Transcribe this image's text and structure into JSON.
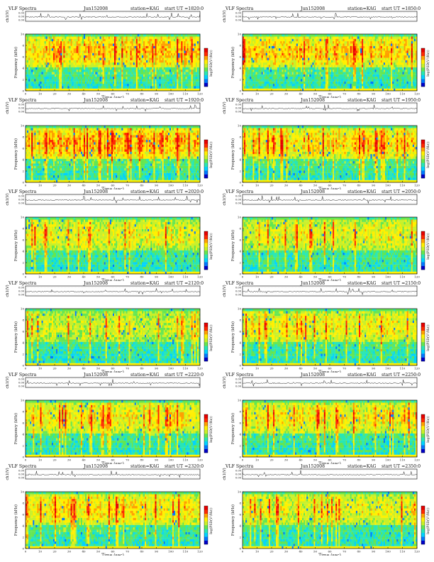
{
  "page_title": "VLF Spectra",
  "labels": {
    "channel_axis": "ch1(V)",
    "freq_axis": "Frequency (kHz)",
    "time_axis": "Time (sec)",
    "colorbar": "log(PSD(V²/Hz))",
    "ch_ticks": [
      "0.00",
      "0.00",
      "0.00"
    ]
  },
  "colors": {
    "spectrogram_scale": [
      "#0000c8",
      "#0078ff",
      "#00d2ff",
      "#28e6b4",
      "#64e650",
      "#c8f028",
      "#fff000",
      "#ffa000",
      "#ff2800",
      "#e60000"
    ],
    "axis": "#000000",
    "trace": "#222222"
  },
  "chart_data": [
    {
      "type": "heatmap",
      "header": {
        "title": "VLF Spectra",
        "date": "Jun152008",
        "station": "station=KAG",
        "start": "start UT =1820:0"
      },
      "x_ticks": [
        "0",
        "10",
        "20",
        "30",
        "40",
        "50",
        "60",
        "70",
        "80",
        "90",
        "100",
        "110",
        "120"
      ],
      "y_ticks": [
        "0",
        "2",
        "4",
        "6",
        "8",
        "10"
      ],
      "xlim": [
        0,
        120
      ],
      "ylim": [
        0,
        10
      ],
      "xlabel": "Time (sec)",
      "ylabel": "Frequency (kHz)",
      "colorbar_label": "log(PSD(V²/Hz))",
      "activity": 0.85
    },
    {
      "type": "heatmap",
      "header": {
        "title": "VLF Spectra",
        "date": "Jun152008",
        "station": "station=KAG",
        "start": "start UT =1850:0"
      },
      "x_ticks": [
        "0",
        "10",
        "20",
        "30",
        "40",
        "50",
        "60",
        "70",
        "80",
        "90",
        "100",
        "110",
        "120"
      ],
      "y_ticks": [
        "0",
        "2",
        "4",
        "6",
        "8",
        "10"
      ],
      "xlim": [
        0,
        120
      ],
      "ylim": [
        0,
        10
      ],
      "xlabel": "Time (sec)",
      "ylabel": "Frequency (kHz)",
      "colorbar_label": "log(PSD(V²/Hz))",
      "activity": 0.8
    },
    {
      "type": "heatmap",
      "header": {
        "title": "VLF Spectra",
        "date": "Jun152008",
        "station": "station=KAG",
        "start": "start UT =1920:0"
      },
      "x_ticks": [
        "0",
        "10",
        "20",
        "30",
        "40",
        "50",
        "60",
        "70",
        "80",
        "90",
        "100",
        "110",
        "120"
      ],
      "y_ticks": [
        "0",
        "2",
        "4",
        "6",
        "8",
        "10"
      ],
      "xlim": [
        0,
        120
      ],
      "ylim": [
        0,
        10
      ],
      "xlabel": "Time (sec)",
      "ylabel": "Frequency (kHz)",
      "colorbar_label": "log(PSD(V²/Hz))",
      "activity": 0.9
    },
    {
      "type": "heatmap",
      "header": {
        "title": "VLF Spectra",
        "date": "Jun152008",
        "station": "station=KAG",
        "start": "start UT =1950:0"
      },
      "x_ticks": [
        "0",
        "10",
        "20",
        "30",
        "40",
        "50",
        "60",
        "70",
        "80",
        "90",
        "100",
        "110",
        "120"
      ],
      "y_ticks": [
        "0",
        "2",
        "4",
        "6",
        "8",
        "10"
      ],
      "xlim": [
        0,
        120
      ],
      "ylim": [
        0,
        10
      ],
      "xlabel": "Time (sec)",
      "ylabel": "Frequency (kHz)",
      "colorbar_label": "log(PSD(V²/Hz))",
      "activity": 0.75
    },
    {
      "type": "heatmap",
      "header": {
        "title": "VLF Spectra",
        "date": "Jun152008",
        "station": "station=KAG",
        "start": "start UT =2020:0"
      },
      "x_ticks": [
        "0",
        "10",
        "20",
        "30",
        "40",
        "50",
        "60",
        "70",
        "80",
        "90",
        "100",
        "110",
        "120"
      ],
      "y_ticks": [
        "0",
        "2",
        "4",
        "6",
        "8",
        "10"
      ],
      "xlim": [
        0,
        120
      ],
      "ylim": [
        0,
        10
      ],
      "xlabel": "Time (sec)",
      "ylabel": "Frequency (kHz)",
      "colorbar_label": "log(PSD(V²/Hz))",
      "activity": 0.55
    },
    {
      "type": "heatmap",
      "header": {
        "title": "VLF Spectra",
        "date": "Jun152008",
        "station": "station=KAG",
        "start": "start UT =2050:0"
      },
      "x_ticks": [
        "0",
        "10",
        "20",
        "30",
        "40",
        "50",
        "60",
        "70",
        "80",
        "90",
        "100",
        "110",
        "120"
      ],
      "y_ticks": [
        "0",
        "2",
        "4",
        "6",
        "8",
        "10"
      ],
      "xlim": [
        0,
        120
      ],
      "ylim": [
        0,
        10
      ],
      "xlabel": "Time (sec)",
      "ylabel": "Frequency (kHz)",
      "colorbar_label": "log(PSD(V²/Hz))",
      "activity": 0.55
    },
    {
      "type": "heatmap",
      "header": {
        "title": "VLF Spectra",
        "date": "Jun152008",
        "station": "station=KAG",
        "start": "start UT =2120:0"
      },
      "x_ticks": [
        "0",
        "10",
        "20",
        "30",
        "40",
        "50",
        "60",
        "70",
        "80",
        "90",
        "100",
        "110",
        "120"
      ],
      "y_ticks": [
        "0",
        "2",
        "4",
        "6",
        "8",
        "10"
      ],
      "xlim": [
        0,
        120
      ],
      "ylim": [
        0,
        10
      ],
      "xlabel": "Time (sec)",
      "ylabel": "Frequency (kHz)",
      "colorbar_label": "log(PSD(V²/Hz))",
      "activity": 0.45
    },
    {
      "type": "heatmap",
      "header": {
        "title": "VLF Spectra",
        "date": "Jun152008",
        "station": "station=KAG",
        "start": "start UT =2150:0"
      },
      "x_ticks": [
        "0",
        "10",
        "20",
        "30",
        "40",
        "50",
        "60",
        "70",
        "80",
        "90",
        "100",
        "110",
        "120"
      ],
      "y_ticks": [
        "0",
        "2",
        "4",
        "6",
        "8",
        "10"
      ],
      "xlim": [
        0,
        120
      ],
      "ylim": [
        0,
        10
      ],
      "xlabel": "Time (sec)",
      "ylabel": "Frequency (kHz)",
      "colorbar_label": "log(PSD(V²/Hz))",
      "activity": 0.6
    },
    {
      "type": "heatmap",
      "header": {
        "title": "VLF Spectra",
        "date": "Jun152008",
        "station": "station=KAG",
        "start": "start UT =2220:0"
      },
      "x_ticks": [
        "0",
        "10",
        "20",
        "30",
        "40",
        "50",
        "60",
        "70",
        "80",
        "90",
        "100",
        "110",
        "120"
      ],
      "y_ticks": [
        "0",
        "2",
        "4",
        "6",
        "8",
        "10"
      ],
      "xlim": [
        0,
        120
      ],
      "ylim": [
        0,
        10
      ],
      "xlabel": "Time (sec)",
      "ylabel": "Frequency (kHz)",
      "colorbar_label": "log(PSD(V²/Hz))",
      "activity": 0.65
    },
    {
      "type": "heatmap",
      "header": {
        "title": "VLF Spectra",
        "date": "Jun152008",
        "station": "station=KAG",
        "start": "start UT =2250:0"
      },
      "x_ticks": [
        "0",
        "10",
        "20",
        "30",
        "40",
        "50",
        "60",
        "70",
        "80",
        "90",
        "100",
        "110",
        "120"
      ],
      "y_ticks": [
        "0",
        "2",
        "4",
        "6",
        "8",
        "10"
      ],
      "xlim": [
        0,
        120
      ],
      "ylim": [
        0,
        10
      ],
      "xlabel": "Time (sec)",
      "ylabel": "Frequency (kHz)",
      "colorbar_label": "log(PSD(V²/Hz))",
      "activity": 0.65
    },
    {
      "type": "heatmap",
      "header": {
        "title": "VLF Spectra",
        "date": "Jun152008",
        "station": "station=KAG",
        "start": "start UT =2320:0"
      },
      "x_ticks": [
        "0",
        "10",
        "20",
        "30",
        "40",
        "50",
        "60",
        "70",
        "80",
        "90",
        "100",
        "110",
        "120"
      ],
      "y_ticks": [
        "0",
        "2",
        "4",
        "6",
        "8",
        "10"
      ],
      "xlim": [
        0,
        120
      ],
      "ylim": [
        0,
        10
      ],
      "xlabel": "Time (sec)",
      "ylabel": "Frequency (kHz)",
      "colorbar_label": "log(PSD(V²/Hz))",
      "activity": 0.7
    },
    {
      "type": "heatmap",
      "header": {
        "title": "VLF Spectra",
        "date": "Jun152008",
        "station": "station=KAG",
        "start": "start UT =2350:0"
      },
      "x_ticks": [
        "0",
        "10",
        "20",
        "30",
        "40",
        "50",
        "60",
        "70",
        "80",
        "90",
        "100",
        "110",
        "120"
      ],
      "y_ticks": [
        "0",
        "2",
        "4",
        "6",
        "8",
        "10"
      ],
      "xlim": [
        0,
        120
      ],
      "ylim": [
        0,
        10
      ],
      "xlabel": "Time (sec)",
      "ylabel": "Frequency (kHz)",
      "colorbar_label": "log(PSD(V²/Hz))",
      "activity": 0.55
    }
  ]
}
